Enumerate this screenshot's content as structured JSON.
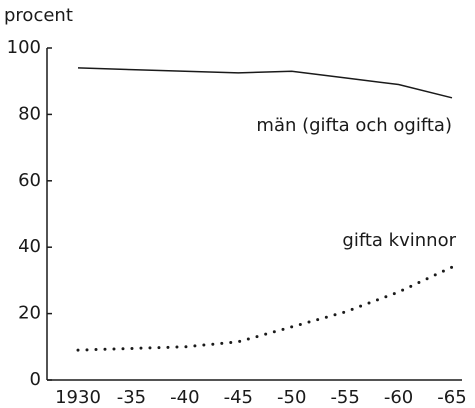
{
  "chart_data": {
    "type": "line",
    "y_label": "procent",
    "categories": [
      "1930",
      "-35",
      "-40",
      "-45",
      "-50",
      "-55",
      "-60",
      "-65"
    ],
    "series": [
      {
        "name": "män (gifta och ogifta)",
        "color": "#1a1a1a",
        "style": "solid",
        "values": [
          94,
          93.5,
          93,
          92.5,
          93,
          91,
          89,
          85
        ]
      },
      {
        "name": "gifta kvinnor",
        "color": "#1a1a1a",
        "style": "dotted",
        "values": [
          9,
          9.5,
          10,
          11.5,
          16,
          20.5,
          26.5,
          34
        ]
      }
    ],
    "ylim": [
      0,
      100
    ],
    "yticks": [
      0,
      20,
      40,
      60,
      80,
      100
    ],
    "grid": false
  }
}
